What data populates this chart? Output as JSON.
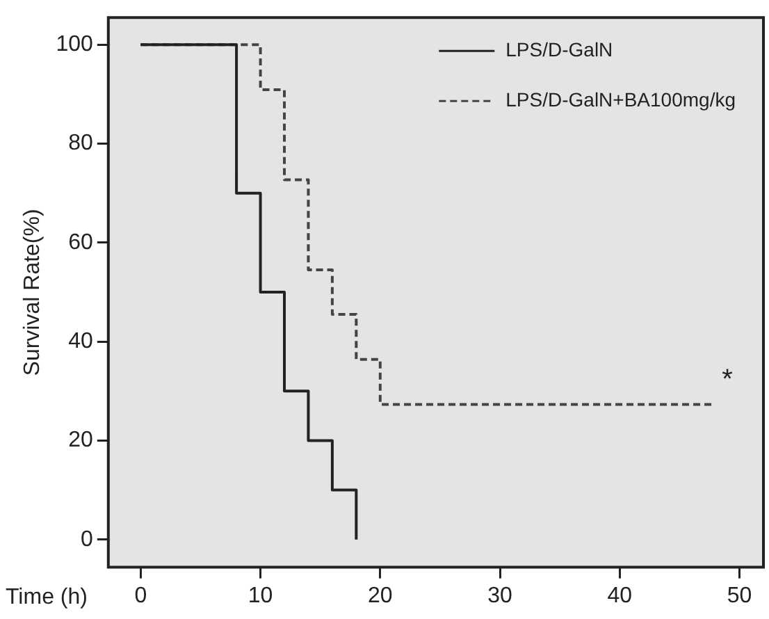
{
  "chart_data": {
    "type": "step",
    "xlabel": "Time (h)",
    "ylabel": "Survival Rate(%)",
    "xlim": [
      -2.7,
      52
    ],
    "xticks": [
      0,
      10,
      20,
      30,
      40,
      50
    ],
    "ylim": [
      -5.6,
      105.5
    ],
    "yticks": [
      0,
      20,
      40,
      60,
      80,
      100
    ],
    "series": [
      {
        "name": "LPS/D-GalN",
        "color": "#222222",
        "line_style": "solid",
        "x": [
          0,
          8,
          10,
          12,
          14,
          16,
          18,
          18
        ],
        "values": [
          100,
          70,
          50,
          30,
          20,
          10,
          10,
          0
        ]
      },
      {
        "name": "LPS/D-GalN+BA100mg/kg",
        "color": "#444444",
        "line_style": "dashed",
        "x": [
          0,
          10,
          12,
          14,
          16,
          18,
          20,
          48
        ],
        "values": [
          100,
          90.9,
          72.7,
          54.5,
          45.5,
          36.4,
          27.3,
          27.3
        ]
      }
    ],
    "annotations": [
      "*"
    ],
    "grid": false,
    "legend": "top right",
    "marker": "none"
  }
}
